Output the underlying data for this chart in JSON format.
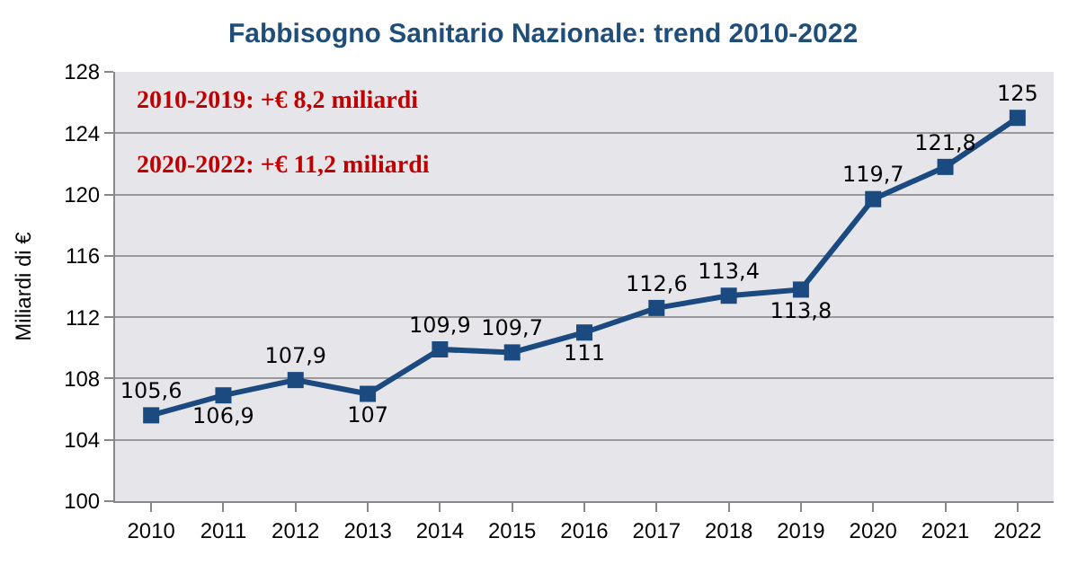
{
  "chart_data": {
    "type": "line",
    "title": "Fabbisogno Sanitario Nazionale: trend 2010-2022",
    "ylabel": "Miliardi di €",
    "categories": [
      "2010",
      "2011",
      "2012",
      "2013",
      "2014",
      "2015",
      "2016",
      "2017",
      "2018",
      "2019",
      "2020",
      "2021",
      "2022"
    ],
    "series": [
      {
        "color": "#1a4a80",
        "values": [
          105.6,
          106.9,
          107.9,
          107,
          109.9,
          109.7,
          111,
          112.6,
          113.4,
          113.8,
          119.7,
          121.8,
          125
        ],
        "value_labels": [
          "105,6",
          "106,9",
          "107,9",
          "107",
          "109,9",
          "109,7",
          "111",
          "112,6",
          "113,4",
          "113,8",
          "119,7",
          "121,8",
          "125"
        ]
      }
    ],
    "ylim": [
      100,
      128
    ],
    "yticks": [
      100,
      104,
      108,
      112,
      116,
      120,
      124,
      128
    ],
    "grid": "y",
    "marker": "square",
    "line_style": "solid",
    "legend": false,
    "annotations": [
      "2010-2019: +€ 8,2 miliardi",
      "2020-2022: +€ 11,2 miliardi"
    ]
  }
}
